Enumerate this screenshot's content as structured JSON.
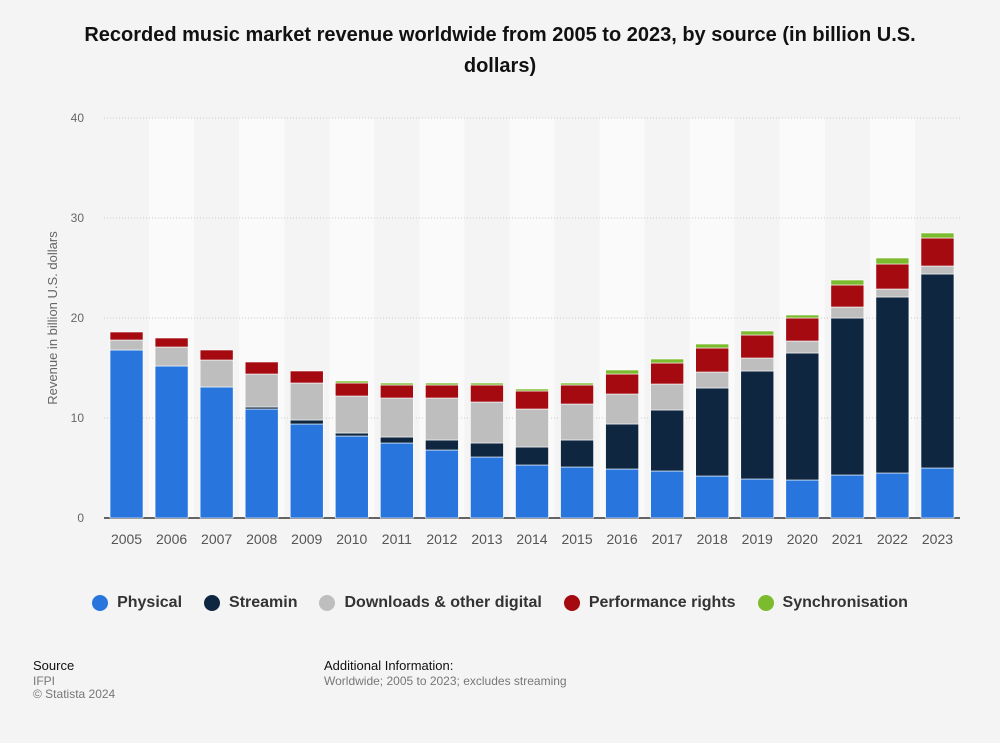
{
  "title": "Recorded music market revenue worldwide from 2005 to 2023, by source (in billion U.S. dollars)",
  "footer": {
    "source_label": "Source",
    "source_value": "IFPI",
    "copyright": "© Statista 2024",
    "info_label": "Additional Information:",
    "info_value": "Worldwide; 2005 to 2023; excludes streaming"
  },
  "colors": {
    "background": "#f4f4f4",
    "band": "#fafafa",
    "grid": "#c9c9c9",
    "axis_text": "#555555"
  },
  "chart_data": {
    "type": "bar",
    "stacked": true,
    "title": "Recorded music market revenue worldwide from 2005 to 2023, by source (in billion U.S. dollars)",
    "xlabel": "",
    "ylabel": "Revenue in billion U.S. dollars",
    "ylim": [
      0,
      40
    ],
    "yticks": [
      0,
      10,
      20,
      30,
      40
    ],
    "grid": true,
    "legend_position": "bottom",
    "categories": [
      "2005",
      "2006",
      "2007",
      "2008",
      "2009",
      "2010",
      "2011",
      "2012",
      "2013",
      "2014",
      "2015",
      "2016",
      "2017",
      "2018",
      "2019",
      "2020",
      "2021",
      "2022",
      "2023"
    ],
    "series": [
      {
        "name": "Physical",
        "color": "#2876dd",
        "values": [
          16.8,
          15.2,
          13.1,
          10.9,
          9.4,
          8.2,
          7.5,
          6.8,
          6.1,
          5.3,
          5.1,
          4.9,
          4.7,
          4.2,
          3.9,
          3.8,
          4.3,
          4.5,
          5.0
        ]
      },
      {
        "name": "Streamin",
        "color": "#0f2641",
        "values": [
          0.0,
          0.0,
          0.0,
          0.2,
          0.4,
          0.3,
          0.6,
          1.0,
          1.4,
          1.8,
          2.7,
          4.5,
          6.1,
          8.8,
          10.8,
          12.7,
          15.7,
          17.6,
          19.4
        ]
      },
      {
        "name": "Downloads & other digital",
        "color": "#bebebe",
        "values": [
          1.0,
          1.9,
          2.7,
          3.3,
          3.7,
          3.7,
          3.9,
          4.2,
          4.1,
          3.8,
          3.6,
          3.0,
          2.6,
          1.6,
          1.3,
          1.2,
          1.1,
          0.8,
          0.8
        ]
      },
      {
        "name": "Performance rights",
        "color": "#a40a10",
        "values": [
          0.8,
          0.9,
          1.0,
          1.2,
          1.2,
          1.3,
          1.3,
          1.3,
          1.7,
          1.8,
          1.9,
          2.0,
          2.1,
          2.4,
          2.3,
          2.3,
          2.2,
          2.5,
          2.8
        ]
      },
      {
        "name": "Synchronisation",
        "color": "#7cbb2d",
        "values": [
          0.0,
          0.0,
          0.0,
          0.0,
          0.0,
          0.2,
          0.2,
          0.2,
          0.2,
          0.2,
          0.2,
          0.4,
          0.4,
          0.4,
          0.4,
          0.3,
          0.5,
          0.6,
          0.5
        ]
      }
    ]
  }
}
